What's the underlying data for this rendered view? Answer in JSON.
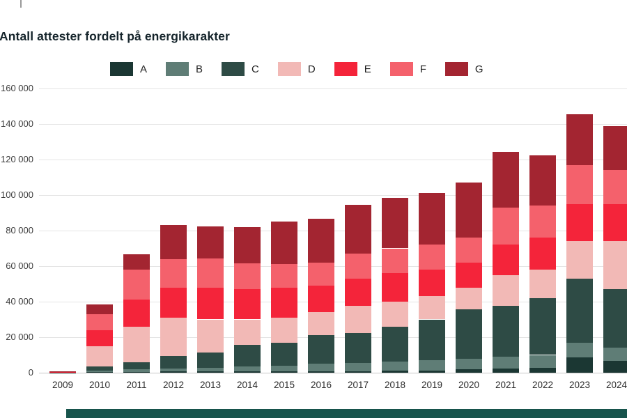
{
  "page": {
    "title": "Antall attester fordelt på energikarakter"
  },
  "footer_bar": {
    "color": "#17544c"
  },
  "chart_data": {
    "type": "bar",
    "stacked": true,
    "title": "Antall attester fordelt på energikarakter",
    "xlabel": "",
    "ylabel": "",
    "ylim": [
      0,
      160000
    ],
    "ytick_step": 20000,
    "ytick_labels": [
      "0",
      "20 000",
      "40 000",
      "60 000",
      "80 000",
      "100 000",
      "120 000",
      "140 000",
      "160 000"
    ],
    "grid": true,
    "legend_position": "top",
    "categories": [
      "2009",
      "2010",
      "2011",
      "2012",
      "2013",
      "2014",
      "2015",
      "2016",
      "2017",
      "2018",
      "2019",
      "2020",
      "2021",
      "2022",
      "2023",
      "2024"
    ],
    "series": [
      {
        "name": "A",
        "color": "#1b3733",
        "values": [
          100,
          300,
          500,
          600,
          600,
          600,
          700,
          800,
          900,
          1100,
          1300,
          1800,
          2200,
          2600,
          8800,
          6800
        ]
      },
      {
        "name": "B",
        "color": "#5f7d76",
        "values": [
          100,
          700,
          1500,
          1800,
          2200,
          2800,
          3300,
          4200,
          4600,
          5000,
          5700,
          6200,
          6800,
          7400,
          8200,
          7200
        ]
      },
      {
        "name": "C",
        "color": "#2e4b45",
        "values": [
          150,
          2500,
          4000,
          7100,
          8700,
          12100,
          13000,
          16000,
          17000,
          19900,
          23000,
          27500,
          28500,
          32000,
          36000,
          33000
        ]
      },
      {
        "name": "D",
        "color": "#f2b9b6",
        "values": [
          100,
          11500,
          20000,
          21500,
          18500,
          14500,
          14000,
          13000,
          15000,
          14000,
          13000,
          12500,
          17500,
          16000,
          21000,
          27000
        ]
      },
      {
        "name": "E",
        "color": "#f4243a",
        "values": [
          100,
          9000,
          15000,
          17000,
          18000,
          17000,
          17000,
          15000,
          15500,
          16000,
          15000,
          14000,
          17000,
          18000,
          21000,
          21000
        ]
      },
      {
        "name": "F",
        "color": "#f4616c",
        "values": [
          100,
          9000,
          17000,
          16000,
          16500,
          14500,
          13000,
          13000,
          14000,
          14000,
          14000,
          14000,
          21000,
          18000,
          22000,
          19000
        ]
      },
      {
        "name": "G",
        "color": "#a32531",
        "values": [
          50,
          5500,
          8500,
          19000,
          18000,
          20500,
          24000,
          24500,
          27500,
          28500,
          29000,
          31000,
          31500,
          28500,
          28500,
          25000
        ]
      }
    ]
  }
}
